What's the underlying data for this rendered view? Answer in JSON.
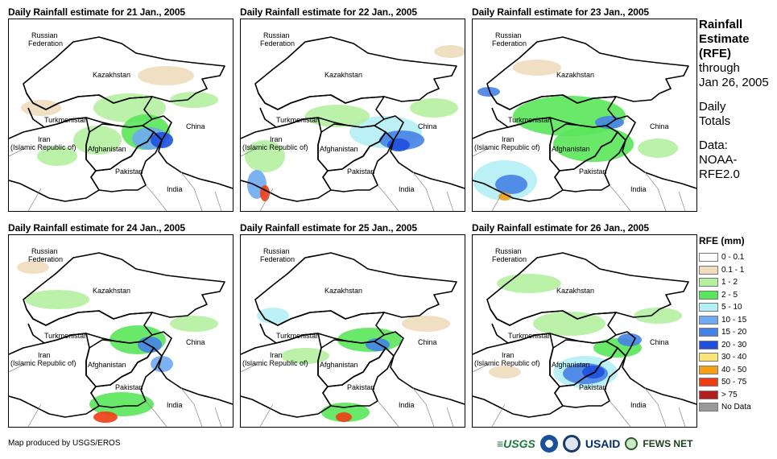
{
  "panels": [
    {
      "title": "Daily Rainfall estimate for 21 Jan., 2005"
    },
    {
      "title": "Daily Rainfall estimate for 22 Jan., 2005"
    },
    {
      "title": "Daily Rainfall estimate for 23 Jan., 2005"
    },
    {
      "title": "Daily Rainfall estimate for 24 Jan., 2005"
    },
    {
      "title": "Daily Rainfall estimate for 25 Jan., 2005"
    },
    {
      "title": "Daily Rainfall estimate for 26 Jan., 2005"
    }
  ],
  "map_labels": {
    "russia_1": "Russian",
    "russia_2": "Federation",
    "kazakhstan": "Kazakhstan",
    "turkmenistan": "Turkmenistan",
    "china": "China",
    "iran_1": "Iran",
    "iran_2": "(Islamic Republic of)",
    "afghanistan": "Afghanistan",
    "pakistan": "Pakistan",
    "india": "India"
  },
  "info": {
    "heading_1": "Rainfall",
    "heading_2": "Estimate",
    "heading_3": "(RFE)",
    "through": "through",
    "date": "Jan 26, 2005",
    "daily_1": "Daily",
    "daily_2": "Totals",
    "data_1": "Data:",
    "data_2": "NOAA-",
    "data_3": "RFE2.0"
  },
  "legend": {
    "title": "RFE (mm)",
    "items": [
      {
        "label": "0 - 0.1",
        "color": "#ffffff"
      },
      {
        "label": "0.1 - 1",
        "color": "#f0dcbe"
      },
      {
        "label": "1 - 2",
        "color": "#b4f0a0"
      },
      {
        "label": "2 - 5",
        "color": "#5ae65a"
      },
      {
        "label": "5 - 10",
        "color": "#b4f0f5"
      },
      {
        "label": "10 - 15",
        "color": "#6eaaf0"
      },
      {
        "label": "15 - 20",
        "color": "#4682e6"
      },
      {
        "label": "20 - 30",
        "color": "#1e50dc"
      },
      {
        "label": "30 - 40",
        "color": "#fae678"
      },
      {
        "label": "40 - 50",
        "color": "#f5a014"
      },
      {
        "label": "50 - 75",
        "color": "#f03c14"
      },
      {
        "label": "> 75",
        "color": "#b41e1e"
      },
      {
        "label": "No Data",
        "color": "#999999"
      }
    ]
  },
  "footer": {
    "credit": "Map produced by USGS/EROS",
    "usgs": "≡USGS",
    "usaid": "USAID",
    "fews": "FEWS NET"
  }
}
